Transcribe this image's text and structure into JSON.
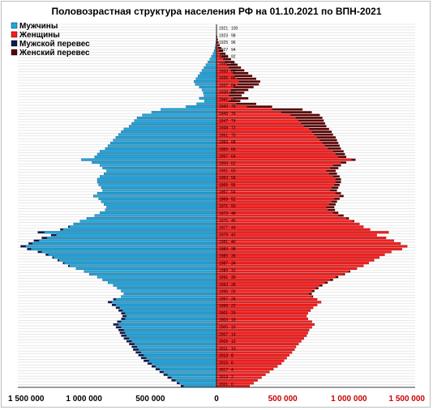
{
  "chart_data": {
    "type": "bar",
    "title": "Половозрастная структура населения РФ на 01.10.2021 по ВПН-2021",
    "orientation": "horizontal-pyramid",
    "legend": {
      "placement": "top-left",
      "entries": [
        {
          "key": "men",
          "label": "Мужчины",
          "color": "#1ca9e3"
        },
        {
          "key": "women",
          "label": "Женщины",
          "color": "#ff1a1a"
        },
        {
          "key": "male_excess",
          "label": "Мужской перевес",
          "color": "#0b1a4a"
        },
        {
          "key": "female_excess",
          "label": "Женский перевес",
          "color": "#5a0000"
        }
      ]
    },
    "x_ticks": [
      {
        "value": -1500000,
        "label": "1 500 000",
        "color": "#000000"
      },
      {
        "value": -1000000,
        "label": "1 000 000",
        "color": "#000000"
      },
      {
        "value": -500000,
        "label": "500 000",
        "color": "#000000"
      },
      {
        "value": 0,
        "label": "0",
        "color": "#000000"
      },
      {
        "value": 500000,
        "label": "500 000",
        "color": "#cc0000"
      },
      {
        "value": 1000000,
        "label": "1 000 000",
        "color": "#cc0000"
      },
      {
        "value": 1500000,
        "label": "1 500 000",
        "color": "#cc0000"
      }
    ],
    "xlim": [
      -1500000,
      1500000
    ],
    "y_labels": [
      {
        "birth_year": "1921",
        "age": "100"
      },
      {
        "birth_year": "1923",
        "age": "98"
      },
      {
        "birth_year": "1925",
        "age": "96"
      },
      {
        "birth_year": "1927",
        "age": "94"
      },
      {
        "birth_year": "1929",
        "age": "92"
      },
      {
        "birth_year": "1931",
        "age": "90"
      },
      {
        "birth_year": "1933",
        "age": "88"
      },
      {
        "birth_year": "1935",
        "age": "86"
      },
      {
        "birth_year": "1937",
        "age": "84"
      },
      {
        "birth_year": "1939",
        "age": "82"
      },
      {
        "birth_year": "1941",
        "age": "80"
      },
      {
        "birth_year": "1943",
        "age": "78"
      },
      {
        "birth_year": "1945",
        "age": "76"
      },
      {
        "birth_year": "1947",
        "age": "74"
      },
      {
        "birth_year": "1949",
        "age": "72"
      },
      {
        "birth_year": "1951",
        "age": "70"
      },
      {
        "birth_year": "1953",
        "age": "68"
      },
      {
        "birth_year": "1955",
        "age": "66"
      },
      {
        "birth_year": "1957",
        "age": "64"
      },
      {
        "birth_year": "1959",
        "age": "62"
      },
      {
        "birth_year": "1961",
        "age": "60"
      },
      {
        "birth_year": "1963",
        "age": "58"
      },
      {
        "birth_year": "1965",
        "age": "56"
      },
      {
        "birth_year": "1967",
        "age": "54"
      },
      {
        "birth_year": "1969",
        "age": "52"
      },
      {
        "birth_year": "1971",
        "age": "50"
      },
      {
        "birth_year": "1973",
        "age": "48"
      },
      {
        "birth_year": "1975",
        "age": "46"
      },
      {
        "birth_year": "1977",
        "age": "44"
      },
      {
        "birth_year": "1979",
        "age": "42"
      },
      {
        "birth_year": "1981",
        "age": "40"
      },
      {
        "birth_year": "1983",
        "age": "38"
      },
      {
        "birth_year": "1985",
        "age": "36"
      },
      {
        "birth_year": "1987",
        "age": "34"
      },
      {
        "birth_year": "1989",
        "age": "32"
      },
      {
        "birth_year": "1991",
        "age": "30"
      },
      {
        "birth_year": "1993",
        "age": "28"
      },
      {
        "birth_year": "1995",
        "age": "26"
      },
      {
        "birth_year": "1997",
        "age": "24"
      },
      {
        "birth_year": "1999",
        "age": "22"
      },
      {
        "birth_year": "2001",
        "age": "20"
      },
      {
        "birth_year": "2003",
        "age": "18"
      },
      {
        "birth_year": "2005",
        "age": "16"
      },
      {
        "birth_year": "2007",
        "age": "14"
      },
      {
        "birth_year": "2009",
        "age": "12"
      },
      {
        "birth_year": "2011",
        "age": "10"
      },
      {
        "birth_year": "2013",
        "age": "8"
      },
      {
        "birth_year": "2015",
        "age": "6"
      },
      {
        "birth_year": "2017",
        "age": "4"
      },
      {
        "birth_year": "2019",
        "age": "2"
      },
      {
        "birth_year": "2021",
        "age": "0"
      }
    ],
    "series": [
      {
        "key": "men",
        "name": "Мужчины",
        "values": [
          100,
          200,
          400,
          900,
          1800,
          3000,
          5000,
          8000,
          12000,
          18000,
          27000,
          38000,
          50000,
          65000,
          80000,
          95000,
          110000,
          125000,
          140000,
          155000,
          170000,
          160000,
          130000,
          110000,
          100000,
          95000,
          130000,
          90000,
          150000,
          230000,
          420000,
          490000,
          560000,
          600000,
          620000,
          640000,
          660000,
          700000,
          720000,
          740000,
          760000,
          780000,
          800000,
          820000,
          840000,
          880000,
          900000,
          920000,
          1020000,
          940000,
          880000,
          860000,
          830000,
          850000,
          880000,
          900000,
          900000,
          890000,
          870000,
          860000,
          900000,
          930000,
          890000,
          870000,
          850000,
          830000,
          840000,
          880000,
          920000,
          980000,
          1030000,
          1080000,
          1120000,
          1180000,
          1350000,
          1250000,
          1320000,
          1380000,
          1420000,
          1480000,
          1430000,
          1350000,
          1290000,
          1240000,
          1200000,
          1160000,
          1120000,
          1060000,
          1000000,
          960000,
          900000,
          860000,
          820000,
          780000,
          750000,
          720000,
          700000,
          720000,
          780000,
          820000,
          790000,
          760000,
          740000,
          720000,
          710000,
          720000,
          750000,
          780000,
          760000,
          740000,
          730000,
          720000,
          700000,
          680000,
          660000,
          640000,
          630000,
          610000,
          590000,
          570000,
          550000,
          520000,
          490000,
          460000,
          430000,
          400000,
          370000,
          340000,
          300000,
          270000
        ]
      },
      {
        "key": "women",
        "name": "Женщины",
        "values": [
          400,
          800,
          1500,
          3000,
          6000,
          10000,
          16000,
          24000,
          36000,
          50000,
          68000,
          88000,
          110000,
          135000,
          160000,
          185000,
          210000,
          240000,
          270000,
          300000,
          330000,
          320000,
          280000,
          240000,
          210000,
          190000,
          240000,
          180000,
          300000,
          420000,
          650000,
          720000,
          780000,
          800000,
          810000,
          820000,
          830000,
          850000,
          870000,
          880000,
          900000,
          910000,
          920000,
          930000,
          940000,
          960000,
          970000,
          980000,
          1050000,
          980000,
          940000,
          920000,
          900000,
          910000,
          930000,
          940000,
          940000,
          930000,
          920000,
          910000,
          940000,
          960000,
          930000,
          910000,
          900000,
          890000,
          895000,
          920000,
          960000,
          1000000,
          1040000,
          1080000,
          1110000,
          1160000,
          1300000,
          1210000,
          1280000,
          1340000,
          1390000,
          1440000,
          1400000,
          1320000,
          1270000,
          1230000,
          1190000,
          1150000,
          1110000,
          1060000,
          1010000,
          970000,
          920000,
          880000,
          840000,
          800000,
          770000,
          740000,
          720000,
          730000,
          760000,
          790000,
          760000,
          730000,
          710000,
          690000,
          680000,
          690000,
          720000,
          740000,
          720000,
          700000,
          690000,
          680000,
          660000,
          640000,
          620000,
          600000,
          590000,
          570000,
          550000,
          530000,
          510000,
          490000,
          460000,
          430000,
          400000,
          370000,
          340000,
          310000,
          280000,
          250000
        ]
      }
    ],
    "grid": true
  }
}
